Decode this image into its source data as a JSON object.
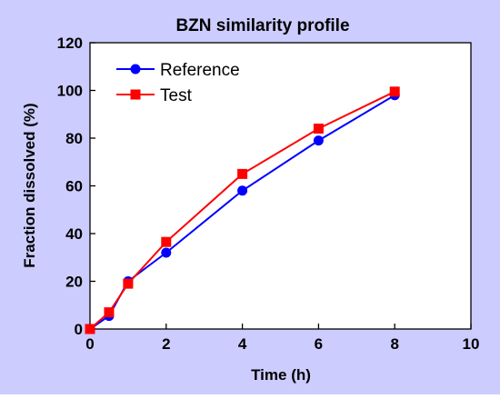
{
  "chart_data": {
    "type": "line",
    "title": "BZN similarity profile",
    "xlabel": "Time (h)",
    "ylabel": "Fraction dissolved (%)",
    "xlim": [
      0,
      10
    ],
    "ylim": [
      0,
      120
    ],
    "xticks": [
      0,
      2,
      4,
      6,
      8,
      10
    ],
    "yticks": [
      0,
      20,
      40,
      60,
      80,
      100,
      120
    ],
    "grid": false,
    "legend_position": "top-left",
    "series": [
      {
        "name": "Reference",
        "marker": "circle",
        "color": "#0000FF",
        "x": [
          0,
          0.5,
          1,
          2,
          4,
          6,
          8
        ],
        "y": [
          0,
          5.5,
          20,
          32,
          58,
          79,
          98
        ]
      },
      {
        "name": "Test",
        "marker": "square",
        "color": "#FF0000",
        "x": [
          0,
          0.5,
          1,
          2,
          4,
          6,
          8
        ],
        "y": [
          0,
          7,
          19,
          36.5,
          65,
          84,
          99.5
        ]
      }
    ],
    "background_color": "#CCCCFF",
    "plot_background_color": "#FFFFFF"
  }
}
